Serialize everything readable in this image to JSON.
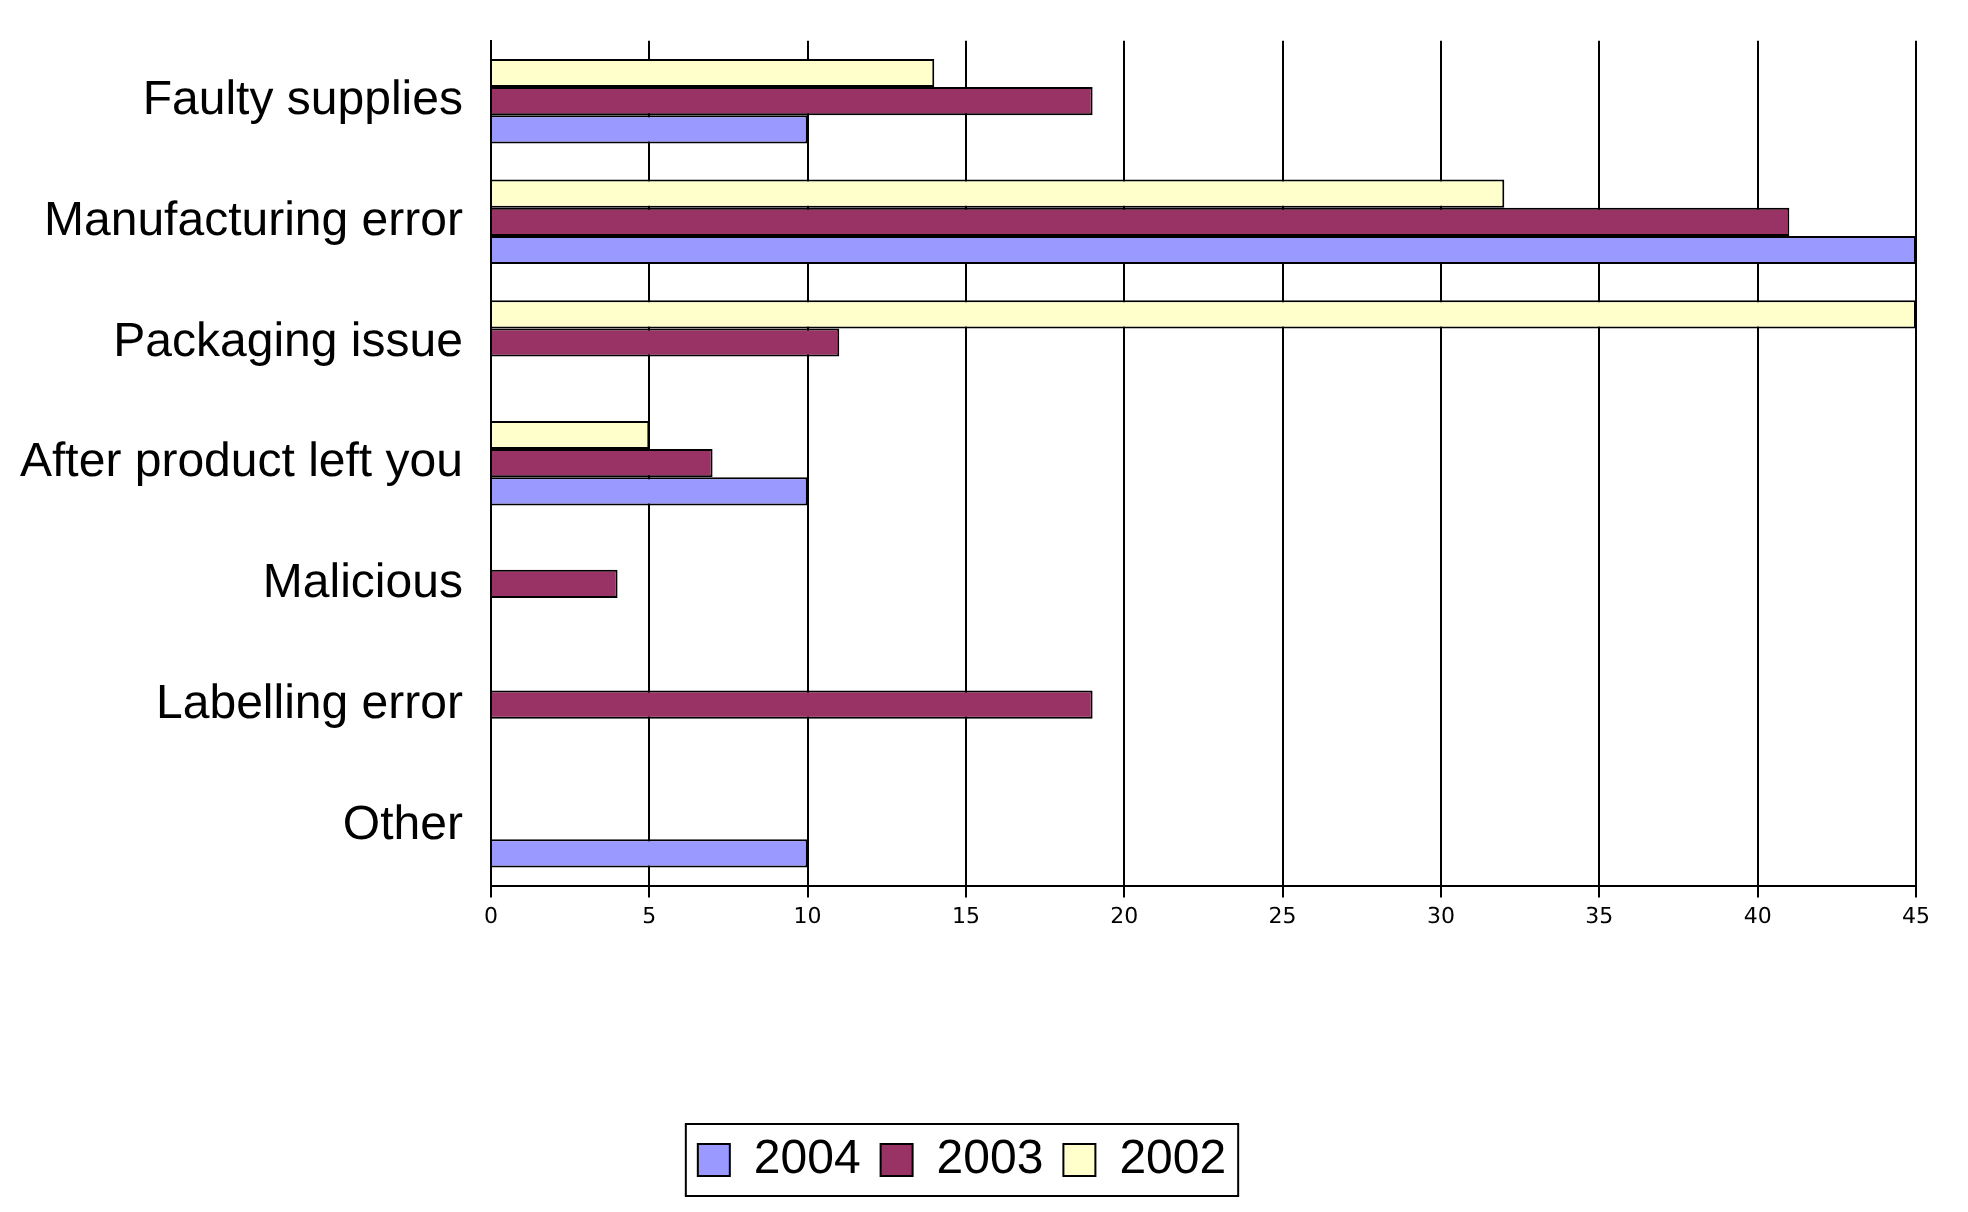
{
  "chart_data": {
    "type": "bar",
    "orientation": "horizontal",
    "categories": [
      "Faulty supplies",
      "Manufacturing error",
      "Packaging issue",
      "After product left you",
      "Malicious",
      "Labelling error",
      "Other"
    ],
    "series": [
      {
        "name": "2004",
        "color": "#9999ff",
        "values": [
          10,
          45,
          0,
          10,
          0,
          0,
          10
        ]
      },
      {
        "name": "2003",
        "color": "#993366",
        "values": [
          19,
          41,
          11,
          7,
          4,
          19,
          0
        ]
      },
      {
        "name": "2002",
        "color": "#ffffcc",
        "values": [
          14,
          32,
          45,
          5,
          0,
          0,
          0
        ]
      }
    ],
    "xlim": [
      0,
      45
    ],
    "xticks": [
      0,
      5,
      10,
      15,
      20,
      25,
      30,
      35,
      40,
      45
    ],
    "grid": "x",
    "legend": "bottom"
  }
}
